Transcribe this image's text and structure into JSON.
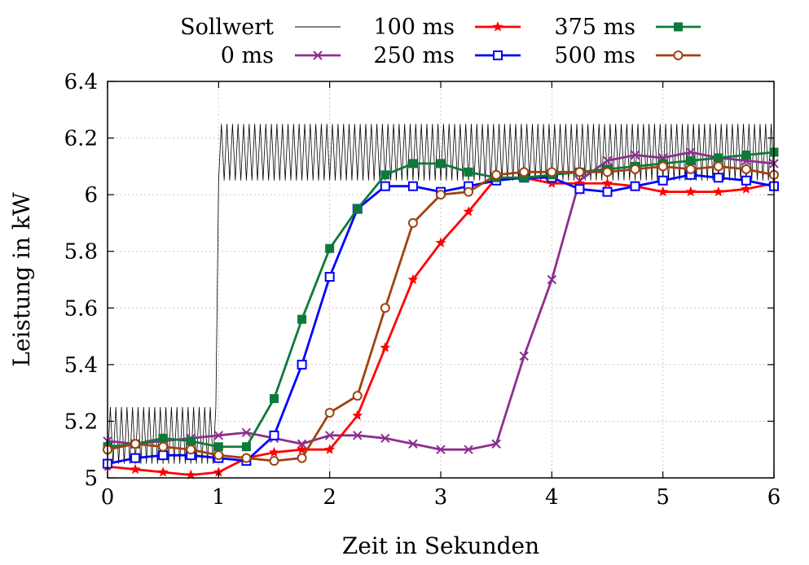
{
  "chart_data": {
    "type": "line",
    "title": "",
    "xlabel": "Zeit in Sekunden",
    "ylabel": "Leistung in kW",
    "xlim": [
      0,
      6
    ],
    "ylim": [
      5,
      6.4
    ],
    "xticks": [
      "0",
      "1",
      "2",
      "3",
      "4",
      "5",
      "6"
    ],
    "yticks": [
      "5",
      "5.2",
      "5.4",
      "5.6",
      "5.8",
      "6",
      "6.2",
      "6.4"
    ],
    "grid": true,
    "legend_position": "top",
    "sollwert": {
      "name": "Sollwert",
      "color": "#000000",
      "low_range": [
        5.05,
        5.25
      ],
      "high_range": [
        6.05,
        6.25
      ],
      "step_time": 1.0,
      "oscillation_period": 0.05
    },
    "x": [
      0,
      0.25,
      0.5,
      0.75,
      1.0,
      1.25,
      1.5,
      1.75,
      2.0,
      2.25,
      2.5,
      2.75,
      3.0,
      3.25,
      3.5,
      3.75,
      4.0,
      4.25,
      4.5,
      4.75,
      5.0,
      5.25,
      5.5,
      5.75,
      6.0
    ],
    "series": [
      {
        "name": "0 ms",
        "color": "#8b2f8f",
        "marker": "x",
        "values": [
          5.13,
          5.12,
          5.13,
          5.14,
          5.15,
          5.16,
          5.14,
          5.12,
          5.15,
          5.15,
          5.14,
          5.12,
          5.1,
          5.1,
          5.12,
          5.43,
          5.7,
          6.05,
          6.12,
          6.14,
          6.13,
          6.15,
          6.13,
          6.12,
          6.11
        ]
      },
      {
        "name": "100 ms",
        "color": "#ff0000",
        "marker": "star",
        "values": [
          5.04,
          5.03,
          5.02,
          5.01,
          5.02,
          5.07,
          5.09,
          5.1,
          5.1,
          5.22,
          5.46,
          5.7,
          5.83,
          5.94,
          6.06,
          6.06,
          6.04,
          6.04,
          6.04,
          6.03,
          6.01,
          6.01,
          6.01,
          6.02,
          6.04
        ]
      },
      {
        "name": "250 ms",
        "color": "#0000ff",
        "marker": "square-open",
        "values": [
          5.05,
          5.07,
          5.08,
          5.08,
          5.07,
          5.06,
          5.15,
          5.4,
          5.71,
          5.95,
          6.03,
          6.03,
          6.01,
          6.03,
          6.05,
          6.06,
          6.06,
          6.02,
          6.01,
          6.03,
          6.05,
          6.07,
          6.06,
          6.05,
          6.03
        ]
      },
      {
        "name": "375 ms",
        "color": "#0e7a3a",
        "marker": "square-filled",
        "values": [
          5.11,
          5.12,
          5.14,
          5.13,
          5.11,
          5.11,
          5.28,
          5.56,
          5.81,
          5.95,
          6.07,
          6.11,
          6.11,
          6.08,
          6.06,
          6.06,
          6.07,
          6.08,
          6.09,
          6.1,
          6.11,
          6.12,
          6.13,
          6.14,
          6.15
        ]
      },
      {
        "name": "500 ms",
        "color": "#a0420f",
        "marker": "circle-open",
        "values": [
          5.1,
          5.12,
          5.11,
          5.1,
          5.08,
          5.07,
          5.06,
          5.07,
          5.23,
          5.29,
          5.6,
          5.9,
          6.0,
          6.01,
          6.07,
          6.08,
          6.08,
          6.08,
          6.08,
          6.09,
          6.1,
          6.09,
          6.1,
          6.09,
          6.07
        ]
      }
    ]
  }
}
